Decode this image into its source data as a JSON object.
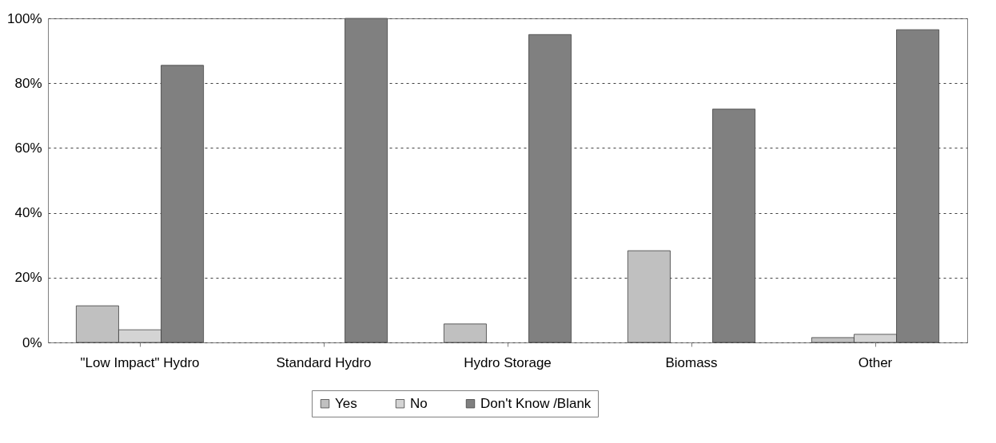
{
  "chart_data": {
    "type": "bar",
    "categories": [
      "\"Low Impact\" Hydro",
      "Standard Hydro",
      "Hydro Storage",
      "Biomass",
      "Other"
    ],
    "series": [
      {
        "name": "Yes",
        "color": "#c0c0c0",
        "values": [
          11.3,
          null,
          5.7,
          28.3,
          1.5
        ]
      },
      {
        "name": "No",
        "color": "#d4d4d4",
        "values": [
          3.9,
          null,
          null,
          null,
          2.5
        ]
      },
      {
        "name": "Don't Know /Blank",
        "color": "#808080",
        "values": [
          85.5,
          100,
          95,
          72,
          96.5
        ]
      }
    ],
    "ylim": [
      0,
      100
    ],
    "yticks": [
      {
        "value": 0,
        "label": "0%"
      },
      {
        "value": 20,
        "label": "20%"
      },
      {
        "value": 40,
        "label": "40%"
      },
      {
        "value": 60,
        "label": "60%"
      },
      {
        "value": 80,
        "label": "80%"
      },
      {
        "value": 100,
        "label": "100%"
      }
    ],
    "grid": "y",
    "legend": "bottom"
  }
}
